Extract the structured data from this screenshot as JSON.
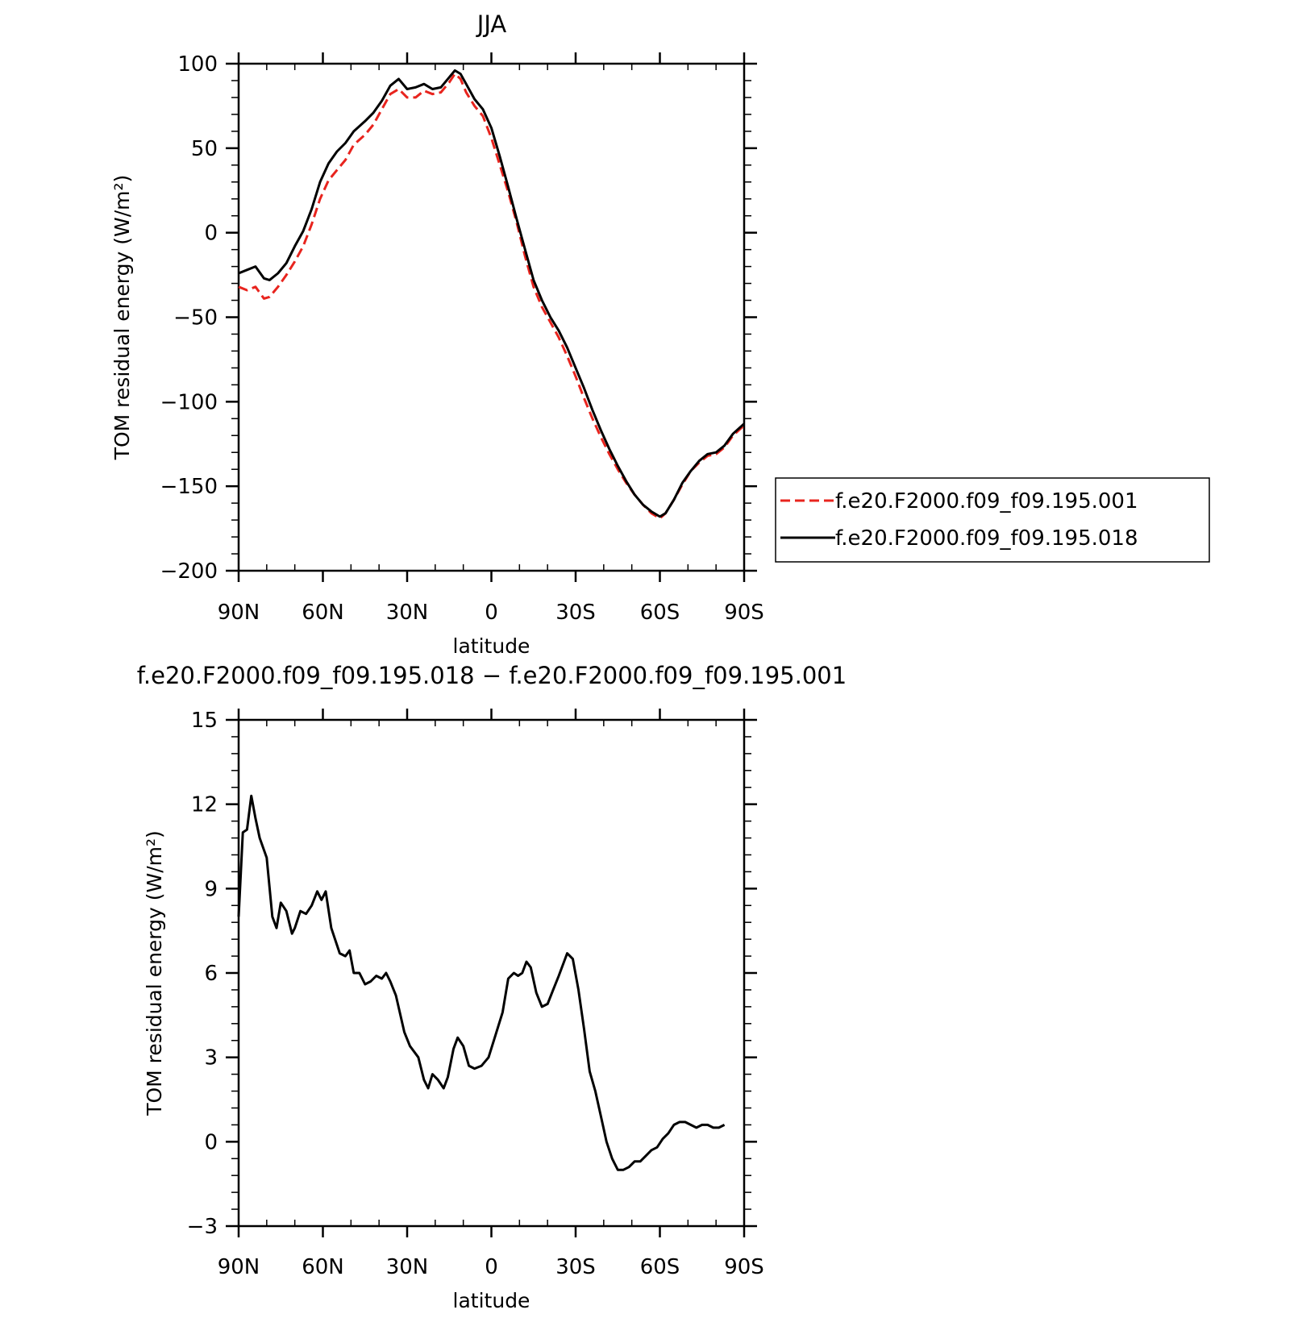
{
  "chart_data": [
    {
      "type": "line",
      "title": "JJA",
      "xlabel": "latitude",
      "ylabel": "TOM residual energy (W/m²)",
      "xlim": [
        90,
        -90
      ],
      "ylim": [
        -200,
        100
      ],
      "x_ticks": [
        90,
        60,
        30,
        0,
        -30,
        -60,
        -90
      ],
      "x_tick_labels": [
        "90N",
        "60N",
        "30N",
        "0",
        "30S",
        "60S",
        "90S"
      ],
      "y_ticks": [
        100,
        50,
        0,
        -50,
        -100,
        -150,
        -200
      ],
      "y_tick_labels": [
        "100",
        "50",
        "0",
        "−50",
        "−100",
        "−150",
        "−200"
      ],
      "legend": "right",
      "series": [
        {
          "name": "f.e20.F2000.f09_f09.195.001",
          "color": "#e8241e",
          "dash": "dashed",
          "points": [
            [
              90,
              -32
            ],
            [
              87,
              -34
            ],
            [
              84,
              -32
            ],
            [
              81,
              -39
            ],
            [
              79,
              -38
            ],
            [
              76,
              -32
            ],
            [
              73,
              -25
            ],
            [
              70,
              -17
            ],
            [
              67,
              -8
            ],
            [
              64,
              5
            ],
            [
              61,
              20
            ],
            [
              58,
              31
            ],
            [
              55,
              37
            ],
            [
              52,
              43
            ],
            [
              49,
              52
            ],
            [
              45,
              58
            ],
            [
              42,
              64
            ],
            [
              39,
              73
            ],
            [
              36,
              82
            ],
            [
              33,
              85
            ],
            [
              30,
              80
            ],
            [
              27,
              80
            ],
            [
              24,
              84
            ],
            [
              21,
              82
            ],
            [
              18,
              83
            ],
            [
              15,
              89
            ],
            [
              13,
              94
            ],
            [
              11,
              91
            ],
            [
              9,
              83
            ],
            [
              6,
              75
            ],
            [
              3,
              69
            ],
            [
              0,
              56
            ],
            [
              -3,
              40
            ],
            [
              -6,
              24
            ],
            [
              -9,
              6
            ],
            [
              -12,
              -14
            ],
            [
              -15,
              -32
            ],
            [
              -18,
              -44
            ],
            [
              -21,
              -53
            ],
            [
              -24,
              -62
            ],
            [
              -27,
              -73
            ],
            [
              -30,
              -85
            ],
            [
              -33,
              -98
            ],
            [
              -36,
              -110
            ],
            [
              -39,
              -121
            ],
            [
              -42,
              -131
            ],
            [
              -45,
              -140
            ],
            [
              -48,
              -148
            ],
            [
              -51,
              -155
            ],
            [
              -54,
              -161
            ],
            [
              -57,
              -166
            ],
            [
              -60,
              -169
            ],
            [
              -62,
              -166
            ],
            [
              -65,
              -158
            ],
            [
              -68,
              -149
            ],
            [
              -71,
              -141
            ],
            [
              -74,
              -136
            ],
            [
              -77,
              -132
            ],
            [
              -80,
              -131
            ],
            [
              -83,
              -127
            ],
            [
              -86,
              -120
            ],
            [
              -90,
              -114
            ]
          ]
        },
        {
          "name": "f.e20.F2000.f09_f09.195.018",
          "color": "#000000",
          "dash": "solid",
          "points": [
            [
              90,
              -24
            ],
            [
              87,
              -22
            ],
            [
              84,
              -20
            ],
            [
              81,
              -27
            ],
            [
              79,
              -28
            ],
            [
              76,
              -24
            ],
            [
              73,
              -18
            ],
            [
              70,
              -8
            ],
            [
              67,
              1
            ],
            [
              64,
              14
            ],
            [
              61,
              30
            ],
            [
              58,
              41
            ],
            [
              55,
              48
            ],
            [
              52,
              53
            ],
            [
              49,
              60
            ],
            [
              45,
              66
            ],
            [
              42,
              71
            ],
            [
              39,
              78
            ],
            [
              36,
              87
            ],
            [
              33,
              91
            ],
            [
              30,
              85
            ],
            [
              27,
              86
            ],
            [
              24,
              88
            ],
            [
              21,
              85
            ],
            [
              18,
              86
            ],
            [
              15,
              92
            ],
            [
              13,
              96
            ],
            [
              11,
              94
            ],
            [
              9,
              88
            ],
            [
              6,
              79
            ],
            [
              3,
              73
            ],
            [
              0,
              62
            ],
            [
              -3,
              45
            ],
            [
              -6,
              27
            ],
            [
              -9,
              8
            ],
            [
              -12,
              -10
            ],
            [
              -15,
              -28
            ],
            [
              -18,
              -40
            ],
            [
              -21,
              -50
            ],
            [
              -24,
              -58
            ],
            [
              -27,
              -68
            ],
            [
              -30,
              -80
            ],
            [
              -33,
              -92
            ],
            [
              -36,
              -105
            ],
            [
              -39,
              -117
            ],
            [
              -42,
              -128
            ],
            [
              -45,
              -138
            ],
            [
              -48,
              -147
            ],
            [
              -51,
              -155
            ],
            [
              -54,
              -161
            ],
            [
              -57,
              -165
            ],
            [
              -60,
              -168
            ],
            [
              -62,
              -166
            ],
            [
              -65,
              -158
            ],
            [
              -68,
              -148
            ],
            [
              -71,
              -141
            ],
            [
              -74,
              -135
            ],
            [
              -77,
              -131
            ],
            [
              -80,
              -130
            ],
            [
              -83,
              -126
            ],
            [
              -86,
              -119
            ],
            [
              -90,
              -113
            ]
          ]
        }
      ]
    },
    {
      "type": "line",
      "title": "f.e20.F2000.f09_f09.195.018 − f.e20.F2000.f09_f09.195.001",
      "xlabel": "latitude",
      "ylabel": "TOM residual energy (W/m²)",
      "xlim": [
        90,
        -90
      ],
      "ylim": [
        -3,
        15
      ],
      "x_ticks": [
        90,
        60,
        30,
        0,
        -30,
        -60,
        -90
      ],
      "x_tick_labels": [
        "90N",
        "60N",
        "30N",
        "0",
        "30S",
        "60S",
        "90S"
      ],
      "y_ticks": [
        15,
        12,
        9,
        6,
        3,
        0,
        -3
      ],
      "y_tick_labels": [
        "15",
        "12",
        "9",
        "6",
        "3",
        "0",
        "−3"
      ],
      "series": [
        {
          "color": "#000000",
          "dash": "solid",
          "points": [
            [
              90,
              8.0
            ],
            [
              88.5,
              11.0
            ],
            [
              87,
              11.1
            ],
            [
              85.5,
              12.3
            ],
            [
              84,
              11.5
            ],
            [
              82.5,
              10.8
            ],
            [
              80,
              10.1
            ],
            [
              78,
              8.0
            ],
            [
              76.5,
              7.6
            ],
            [
              75,
              8.5
            ],
            [
              73,
              8.2
            ],
            [
              71,
              7.4
            ],
            [
              70,
              7.6
            ],
            [
              68,
              8.2
            ],
            [
              66,
              8.1
            ],
            [
              64,
              8.4
            ],
            [
              62,
              8.9
            ],
            [
              60.5,
              8.6
            ],
            [
              59,
              8.9
            ],
            [
              57,
              7.6
            ],
            [
              54,
              6.7
            ],
            [
              52,
              6.6
            ],
            [
              50.5,
              6.8
            ],
            [
              49,
              6.0
            ],
            [
              47,
              6.0
            ],
            [
              45,
              5.6
            ],
            [
              43,
              5.7
            ],
            [
              41,
              5.9
            ],
            [
              39,
              5.8
            ],
            [
              37.5,
              6.0
            ],
            [
              36,
              5.7
            ],
            [
              34,
              5.2
            ],
            [
              31,
              3.9
            ],
            [
              29,
              3.4
            ],
            [
              26,
              3.0
            ],
            [
              24,
              2.2
            ],
            [
              22.5,
              1.9
            ],
            [
              21,
              2.4
            ],
            [
              19,
              2.2
            ],
            [
              17,
              1.9
            ],
            [
              15.5,
              2.3
            ],
            [
              13.5,
              3.3
            ],
            [
              12,
              3.7
            ],
            [
              10,
              3.4
            ],
            [
              8,
              2.7
            ],
            [
              6,
              2.6
            ],
            [
              3.5,
              2.7
            ],
            [
              1,
              3.0
            ],
            [
              -1.5,
              3.8
            ],
            [
              -4,
              4.6
            ],
            [
              -6,
              5.8
            ],
            [
              -8,
              6.0
            ],
            [
              -9.5,
              5.9
            ],
            [
              -11,
              6.0
            ],
            [
              -12.5,
              6.4
            ],
            [
              -14,
              6.2
            ],
            [
              -16,
              5.3
            ],
            [
              -18,
              4.8
            ],
            [
              -20,
              4.9
            ],
            [
              -22,
              5.4
            ],
            [
              -24,
              5.9
            ],
            [
              -27,
              6.7
            ],
            [
              -29,
              6.5
            ],
            [
              -31,
              5.4
            ],
            [
              -33,
              4.0
            ],
            [
              -35,
              2.5
            ],
            [
              -37,
              1.8
            ],
            [
              -39,
              0.9
            ],
            [
              -41,
              0.0
            ],
            [
              -43,
              -0.6
            ],
            [
              -45,
              -1.0
            ],
            [
              -47,
              -1.0
            ],
            [
              -49,
              -0.9
            ],
            [
              -51,
              -0.7
            ],
            [
              -53,
              -0.7
            ],
            [
              -55,
              -0.5
            ],
            [
              -57,
              -0.3
            ],
            [
              -59,
              -0.2
            ],
            [
              -61,
              0.1
            ],
            [
              -63,
              0.3
            ],
            [
              -65,
              0.6
            ],
            [
              -67,
              0.7
            ],
            [
              -69,
              0.7
            ],
            [
              -71,
              0.6
            ],
            [
              -73,
              0.5
            ],
            [
              -75,
              0.6
            ],
            [
              -77,
              0.6
            ],
            [
              -79,
              0.5
            ],
            [
              -81,
              0.5
            ],
            [
              -83,
              0.6
            ]
          ]
        }
      ]
    }
  ]
}
